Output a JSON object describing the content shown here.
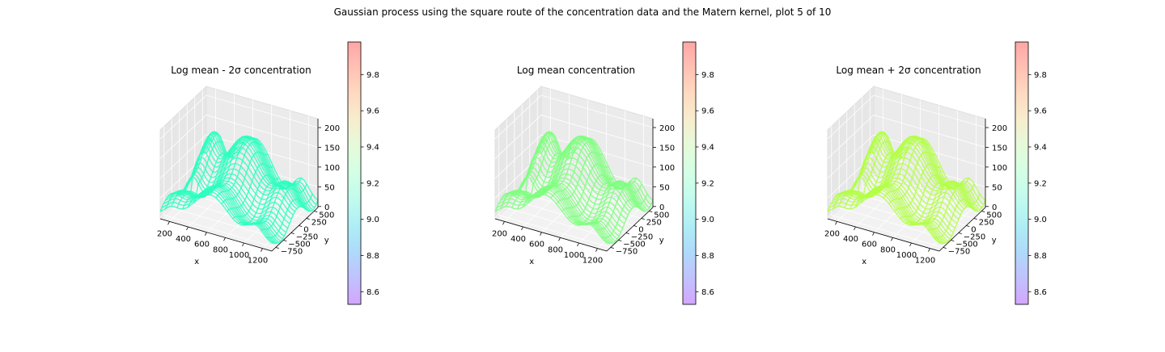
{
  "figure": {
    "suptitle": "Gaussian process using the square route of the concentration data and the Matern kernel, plot 5 of 10"
  },
  "chart_data": [
    {
      "type": "3d-surface-wireframe",
      "title": "Log mean - 2σ concentration",
      "xlabel": "x",
      "ylabel": "y",
      "zlabel": "",
      "x_ticks": [
        "200",
        "400",
        "600",
        "800",
        "1000",
        "1200"
      ],
      "y_ticks": [
        "−750",
        "−500",
        "−250",
        "0",
        "250",
        "500"
      ],
      "z_ticks": [
        "0",
        "50",
        "100",
        "150",
        "200"
      ],
      "xlim": [
        100,
        1250
      ],
      "ylim": [
        -900,
        700
      ],
      "zlim": [
        0,
        210
      ],
      "surface_color": "#2cffbf",
      "colorbar": {
        "ticks": [
          "8.6",
          "8.8",
          "9.0",
          "9.2",
          "9.4",
          "9.6",
          "9.8"
        ],
        "range": [
          8.53,
          9.98
        ],
        "cmap": "rainbow",
        "alpha": 0.3
      }
    },
    {
      "type": "3d-surface-wireframe",
      "title": "Log mean concentration",
      "xlabel": "x",
      "ylabel": "y",
      "zlabel": "",
      "x_ticks": [
        "200",
        "400",
        "600",
        "800",
        "1000",
        "1200"
      ],
      "y_ticks": [
        "−750",
        "−500",
        "−250",
        "0",
        "250",
        "500"
      ],
      "z_ticks": [
        "0",
        "50",
        "100",
        "150",
        "200"
      ],
      "xlim": [
        100,
        1250
      ],
      "ylim": [
        -900,
        700
      ],
      "zlim": [
        0,
        210
      ],
      "surface_color": "#7fff7f",
      "colorbar": {
        "ticks": [
          "8.6",
          "8.8",
          "9.0",
          "9.2",
          "9.4",
          "9.6",
          "9.8"
        ],
        "range": [
          8.53,
          9.98
        ],
        "cmap": "rainbow",
        "alpha": 0.3
      }
    },
    {
      "type": "3d-surface-wireframe",
      "title": "Log mean + 2σ concentration",
      "xlabel": "x",
      "ylabel": "y",
      "zlabel": "",
      "x_ticks": [
        "200",
        "400",
        "600",
        "800",
        "1000",
        "1200"
      ],
      "y_ticks": [
        "−750",
        "−500",
        "−250",
        "0",
        "250",
        "500"
      ],
      "z_ticks": [
        "0",
        "50",
        "100",
        "150",
        "200"
      ],
      "xlim": [
        100,
        1250
      ],
      "ylim": [
        -900,
        700
      ],
      "zlim": [
        0,
        210
      ],
      "surface_color": "#b3ff46",
      "colorbar": {
        "ticks": [
          "8.6",
          "8.8",
          "9.0",
          "9.2",
          "9.4",
          "9.6",
          "9.8"
        ],
        "range": [
          8.53,
          9.98
        ],
        "cmap": "rainbow",
        "alpha": 0.3
      }
    }
  ]
}
